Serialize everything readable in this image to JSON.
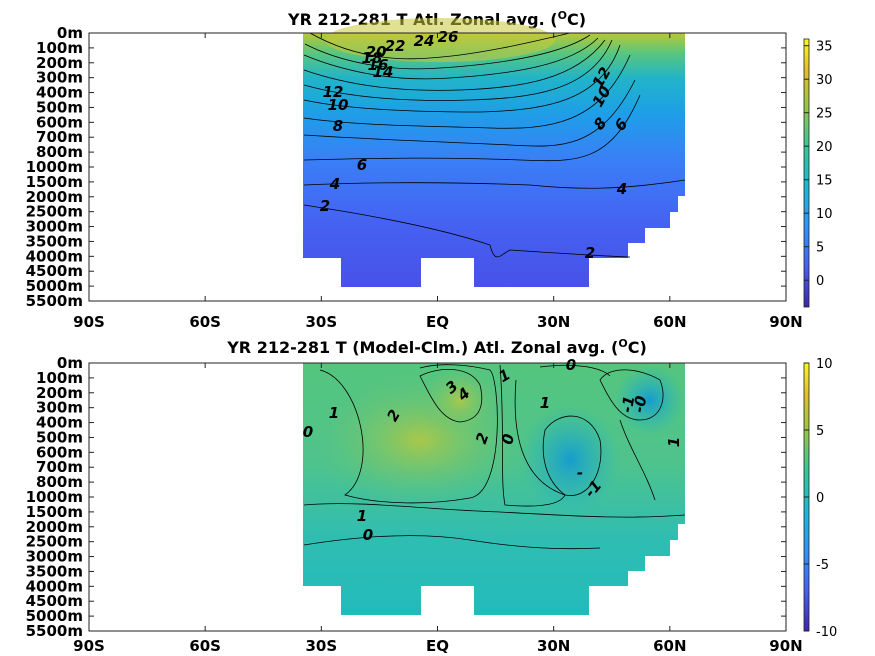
{
  "chart_data": [
    {
      "type": "heatmap",
      "title": "YR 212-281 T Atl. Zonal avg. (",
      "title_unit_sup": "O",
      "title_unit_end": "C)",
      "x_ticks": [
        "90S",
        "60S",
        "30S",
        "EQ",
        "30N",
        "60N",
        "90N"
      ],
      "x_tick_values": [
        -90,
        -60,
        -30,
        0,
        30,
        60,
        90
      ],
      "xlim": [
        -90,
        90
      ],
      "y_ticks": [
        "0m",
        "100m",
        "200m",
        "300m",
        "400m",
        "500m",
        "600m",
        "700m",
        "800m",
        "1000m",
        "1500m",
        "2000m",
        "2500m",
        "3000m",
        "3500m",
        "4000m",
        "4500m",
        "5000m",
        "5500m"
      ],
      "y_tick_values": [
        0,
        100,
        200,
        300,
        400,
        500,
        600,
        700,
        800,
        1000,
        1500,
        2000,
        2500,
        3000,
        3500,
        4000,
        4500,
        5000,
        5500
      ],
      "colorbar_ticks": [
        "35",
        "30",
        "25",
        "20",
        "15",
        "10",
        "5",
        "0"
      ],
      "colorbar_values": [
        35,
        30,
        25,
        20,
        15,
        10,
        5,
        0
      ],
      "colorbar_range": [
        -4,
        36
      ],
      "contour_labels": [
        {
          "text": "26",
          "lat": 2,
          "depth": 60
        },
        {
          "text": "24",
          "lat": -3,
          "depth": 90
        },
        {
          "text": "22",
          "lat": -12,
          "depth": 110
        },
        {
          "text": "20",
          "lat": -16,
          "depth": 130
        },
        {
          "text": "18",
          "lat": -17,
          "depth": 160
        },
        {
          "text": "16",
          "lat": -17,
          "depth": 190
        },
        {
          "text": "14",
          "lat": -15,
          "depth": 240
        },
        {
          "text": "12",
          "lat": -26,
          "depth": 380
        },
        {
          "text": "10",
          "lat": -25,
          "depth": 480
        },
        {
          "text": "8",
          "lat": -25,
          "depth": 620
        },
        {
          "text": "6",
          "lat": -20,
          "depth": 900
        },
        {
          "text": "4",
          "lat": -26,
          "depth": 1400
        },
        {
          "text": "2",
          "lat": -28,
          "depth": 2150
        },
        {
          "text": "12",
          "lat": 49,
          "depth": 230
        },
        {
          "text": "10",
          "lat": 48,
          "depth": 380
        },
        {
          "text": "8",
          "lat": 47,
          "depth": 580
        },
        {
          "text": "6",
          "lat": 51,
          "depth": 580
        },
        {
          "text": "4",
          "lat": 48,
          "depth": 1400
        },
        {
          "text": "2",
          "lat": 36,
          "depth": 3750
        }
      ]
    },
    {
      "type": "heatmap",
      "title": "YR 212-281 T (Model-Clm.) Atl. Zonal avg. (",
      "title_unit_sup": "O",
      "title_unit_end": "C)",
      "x_ticks": [
        "90S",
        "60S",
        "30S",
        "EQ",
        "30N",
        "60N",
        "90N"
      ],
      "x_tick_values": [
        -90,
        -60,
        -30,
        0,
        30,
        60,
        90
      ],
      "xlim": [
        -90,
        90
      ],
      "y_ticks": [
        "0m",
        "100m",
        "200m",
        "300m",
        "400m",
        "500m",
        "600m",
        "700m",
        "800m",
        "1000m",
        "1500m",
        "2000m",
        "2500m",
        "3000m",
        "3500m",
        "4000m",
        "4500m",
        "5000m",
        "5500m"
      ],
      "y_tick_values": [
        0,
        100,
        200,
        300,
        400,
        500,
        600,
        700,
        800,
        1000,
        1500,
        2000,
        2500,
        3000,
        3500,
        4000,
        4500,
        5000,
        5500
      ],
      "colorbar_ticks": [
        "10",
        "5",
        "0",
        "-5",
        "-10"
      ],
      "colorbar_values": [
        10,
        5,
        0,
        -5,
        -10
      ],
      "colorbar_range": [
        -10,
        10
      ],
      "contour_labels": [
        {
          "text": "0",
          "lat": 28,
          "depth": 30
        },
        {
          "text": "1",
          "lat": 15,
          "depth": 80
        },
        {
          "text": "3",
          "lat": 3,
          "depth": 140
        },
        {
          "text": "4",
          "lat": 6,
          "depth": 180
        },
        {
          "text": "1",
          "lat": -28,
          "depth": 330
        },
        {
          "text": "0",
          "lat": -34,
          "depth": 450
        },
        {
          "text": "2",
          "lat": -10,
          "depth": 350
        },
        {
          "text": "1",
          "lat": 24,
          "depth": 250
        },
        {
          "text": "2",
          "lat": 11,
          "depth": 500
        },
        {
          "text": "0",
          "lat": 17,
          "depth": 500
        },
        {
          "text": "-1",
          "lat": 49,
          "depth": 250
        },
        {
          "text": "-0",
          "lat": 52,
          "depth": 250
        },
        {
          "text": "1",
          "lat": 63,
          "depth": 500
        },
        {
          "text": "-",
          "lat": 37,
          "depth": 850
        },
        {
          "text": "-1",
          "lat": 42,
          "depth": 980
        },
        {
          "text": "1",
          "lat": -20,
          "depth": 1480
        },
        {
          "text": "0",
          "lat": -19,
          "depth": 2200
        }
      ]
    }
  ]
}
